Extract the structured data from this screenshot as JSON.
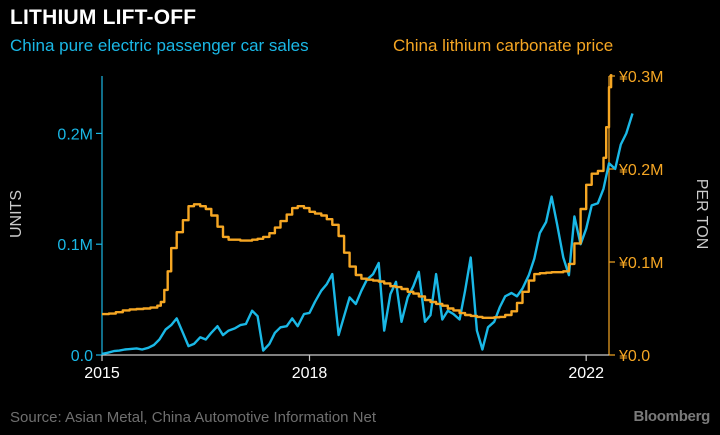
{
  "title": "LITHIUM LIFT-OFF",
  "source": "Source: Asian Metal, China Automotive Information Net",
  "brand": "Bloomberg",
  "colors": {
    "background": "#000000",
    "ev_sales": "#1ab8e6",
    "lithium_price": "#f5a623",
    "axis_text": "#cccccc",
    "muted": "#6f6f6f"
  },
  "chart_data": {
    "type": "line",
    "title": "LITHIUM LIFT-OFF",
    "grid": false,
    "x_range": [
      2015,
      2022.33
    ],
    "x_ticks": [
      "2015",
      "2018",
      "2022"
    ],
    "axes": {
      "left": {
        "label": "UNITS",
        "range": [
          0,
          250000
        ],
        "ticks": [
          {
            "value": 0,
            "label": "0.0"
          },
          {
            "value": 100000,
            "label": "0.1M"
          },
          {
            "value": 200000,
            "label": "0.2M"
          }
        ]
      },
      "right": {
        "label": "PER TON",
        "range": [
          0,
          300000
        ],
        "ticks": [
          {
            "value": 0,
            "label": "¥0.0"
          },
          {
            "value": 100000,
            "label": "¥0.1M"
          },
          {
            "value": 200000,
            "label": "¥0.2M"
          },
          {
            "value": 300000,
            "label": "¥0.3M"
          }
        ]
      }
    },
    "series": [
      {
        "name": "China pure electric passenger car sales",
        "axis": "left",
        "color": "#1ab8e6",
        "points": [
          [
            2015.0,
            1000
          ],
          [
            2015.08,
            2000
          ],
          [
            2015.17,
            3500
          ],
          [
            2015.25,
            4000
          ],
          [
            2015.33,
            5000
          ],
          [
            2015.42,
            5500
          ],
          [
            2015.5,
            6000
          ],
          [
            2015.58,
            5000
          ],
          [
            2015.67,
            6500
          ],
          [
            2015.75,
            9000
          ],
          [
            2015.83,
            14000
          ],
          [
            2015.92,
            23000
          ],
          [
            2016.0,
            27000
          ],
          [
            2016.08,
            33000
          ],
          [
            2016.17,
            20000
          ],
          [
            2016.25,
            8000
          ],
          [
            2016.33,
            10000
          ],
          [
            2016.42,
            16000
          ],
          [
            2016.5,
            14000
          ],
          [
            2016.58,
            20000
          ],
          [
            2016.67,
            26000
          ],
          [
            2016.75,
            18000
          ],
          [
            2016.83,
            22000
          ],
          [
            2016.92,
            24000
          ],
          [
            2017.0,
            27000
          ],
          [
            2017.08,
            28000
          ],
          [
            2017.17,
            40000
          ],
          [
            2017.25,
            35000
          ],
          [
            2017.33,
            4000
          ],
          [
            2017.42,
            10000
          ],
          [
            2017.5,
            20000
          ],
          [
            2017.58,
            25000
          ],
          [
            2017.67,
            26000
          ],
          [
            2017.75,
            33000
          ],
          [
            2017.83,
            26000
          ],
          [
            2017.92,
            37000
          ],
          [
            2018.0,
            38000
          ],
          [
            2018.08,
            48000
          ],
          [
            2018.17,
            58000
          ],
          [
            2018.25,
            64000
          ],
          [
            2018.33,
            73000
          ],
          [
            2018.42,
            18000
          ],
          [
            2018.5,
            35000
          ],
          [
            2018.58,
            52000
          ],
          [
            2018.67,
            46000
          ],
          [
            2018.75,
            58000
          ],
          [
            2018.83,
            68000
          ],
          [
            2018.92,
            73000
          ],
          [
            2019.0,
            83000
          ],
          [
            2019.08,
            22000
          ],
          [
            2019.17,
            55000
          ],
          [
            2019.25,
            66000
          ],
          [
            2019.33,
            30000
          ],
          [
            2019.42,
            52000
          ],
          [
            2019.5,
            62000
          ],
          [
            2019.58,
            75000
          ],
          [
            2019.67,
            30000
          ],
          [
            2019.75,
            36000
          ],
          [
            2019.83,
            73000
          ],
          [
            2019.92,
            32000
          ],
          [
            2020.0,
            40000
          ],
          [
            2020.08,
            37000
          ],
          [
            2020.17,
            32000
          ],
          [
            2020.25,
            58000
          ],
          [
            2020.33,
            88000
          ],
          [
            2020.42,
            22000
          ],
          [
            2020.5,
            5000
          ],
          [
            2020.58,
            25000
          ],
          [
            2020.67,
            30000
          ],
          [
            2020.75,
            43000
          ],
          [
            2020.83,
            53000
          ],
          [
            2020.92,
            56000
          ],
          [
            2021.0,
            53000
          ],
          [
            2021.08,
            60000
          ],
          [
            2021.17,
            72000
          ],
          [
            2021.25,
            87000
          ],
          [
            2021.33,
            110000
          ],
          [
            2021.42,
            120000
          ],
          [
            2021.5,
            143000
          ],
          [
            2021.58,
            118000
          ],
          [
            2021.67,
            88000
          ],
          [
            2021.75,
            72000
          ],
          [
            2021.83,
            125000
          ],
          [
            2021.92,
            100000
          ],
          [
            2022.0,
            114000
          ],
          [
            2022.08,
            135000
          ],
          [
            2022.17,
            137000
          ],
          [
            2022.25,
            150000
          ],
          [
            2022.33,
            173000
          ],
          [
            2022.42,
            168000
          ],
          [
            2022.5,
            190000
          ],
          [
            2022.58,
            200000
          ],
          [
            2022.67,
            218000
          ]
        ]
      },
      {
        "name": "China lithium carbonate price",
        "axis": "right",
        "color": "#f5a623",
        "points": [
          [
            2015.0,
            44000
          ],
          [
            2015.1,
            44500
          ],
          [
            2015.2,
            46000
          ],
          [
            2015.3,
            48000
          ],
          [
            2015.4,
            49000
          ],
          [
            2015.5,
            49500
          ],
          [
            2015.6,
            50000
          ],
          [
            2015.7,
            51000
          ],
          [
            2015.8,
            53000
          ],
          [
            2015.85,
            57000
          ],
          [
            2015.9,
            70000
          ],
          [
            2015.95,
            90000
          ],
          [
            2016.0,
            115000
          ],
          [
            2016.08,
            132000
          ],
          [
            2016.17,
            145000
          ],
          [
            2016.25,
            160000
          ],
          [
            2016.33,
            162000
          ],
          [
            2016.42,
            160000
          ],
          [
            2016.5,
            157000
          ],
          [
            2016.58,
            150000
          ],
          [
            2016.67,
            138000
          ],
          [
            2016.75,
            127000
          ],
          [
            2016.83,
            124000
          ],
          [
            2016.92,
            124000
          ],
          [
            2017.0,
            123000
          ],
          [
            2017.08,
            123000
          ],
          [
            2017.17,
            124000
          ],
          [
            2017.25,
            125000
          ],
          [
            2017.33,
            127000
          ],
          [
            2017.42,
            131000
          ],
          [
            2017.5,
            137000
          ],
          [
            2017.58,
            144000
          ],
          [
            2017.67,
            151000
          ],
          [
            2017.75,
            158000
          ],
          [
            2017.83,
            160000
          ],
          [
            2017.92,
            158000
          ],
          [
            2018.0,
            154000
          ],
          [
            2018.08,
            152000
          ],
          [
            2018.17,
            150000
          ],
          [
            2018.25,
            146000
          ],
          [
            2018.33,
            140000
          ],
          [
            2018.42,
            128000
          ],
          [
            2018.5,
            110000
          ],
          [
            2018.58,
            95000
          ],
          [
            2018.67,
            86000
          ],
          [
            2018.75,
            82000
          ],
          [
            2018.83,
            81000
          ],
          [
            2018.92,
            80000
          ],
          [
            2019.0,
            79000
          ],
          [
            2019.08,
            77000
          ],
          [
            2019.17,
            74000
          ],
          [
            2019.25,
            73000
          ],
          [
            2019.33,
            71000
          ],
          [
            2019.42,
            68000
          ],
          [
            2019.5,
            66000
          ],
          [
            2019.58,
            63000
          ],
          [
            2019.67,
            59000
          ],
          [
            2019.75,
            57000
          ],
          [
            2019.83,
            55000
          ],
          [
            2019.92,
            53000
          ],
          [
            2020.0,
            50000
          ],
          [
            2020.08,
            48000
          ],
          [
            2020.17,
            45000
          ],
          [
            2020.25,
            43000
          ],
          [
            2020.33,
            42000
          ],
          [
            2020.42,
            41000
          ],
          [
            2020.5,
            40000
          ],
          [
            2020.58,
            40000
          ],
          [
            2020.67,
            40500
          ],
          [
            2020.75,
            41000
          ],
          [
            2020.83,
            43000
          ],
          [
            2020.92,
            47000
          ],
          [
            2021.0,
            56000
          ],
          [
            2021.08,
            68000
          ],
          [
            2021.17,
            80000
          ],
          [
            2021.25,
            87000
          ],
          [
            2021.33,
            88000
          ],
          [
            2021.42,
            88500
          ],
          [
            2021.5,
            89000
          ],
          [
            2021.58,
            89000
          ],
          [
            2021.67,
            90000
          ],
          [
            2021.75,
            98000
          ],
          [
            2021.83,
            120000
          ],
          [
            2021.92,
            157000
          ],
          [
            2022.0,
            183000
          ],
          [
            2022.08,
            195000
          ],
          [
            2022.17,
            198000
          ],
          [
            2022.25,
            212000
          ],
          [
            2022.29,
            245000
          ],
          [
            2022.33,
            288000
          ],
          [
            2022.36,
            302000
          ]
        ]
      }
    ]
  }
}
